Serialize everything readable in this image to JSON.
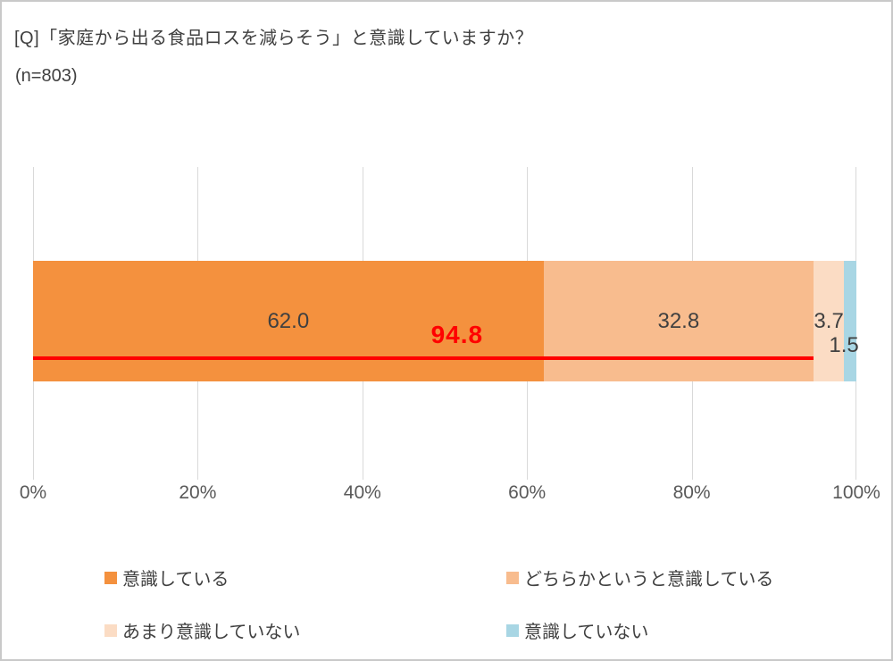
{
  "title": "[Q]「家庭から出る食品ロスを減らそう」と意識していますか？",
  "subtitle": "(n=803)",
  "chart_data": {
    "type": "bar",
    "stacked": true,
    "orientation": "horizontal",
    "categories": [
      "意識している",
      "どちらかというと意識している",
      "あまり意識していない",
      "意識していない"
    ],
    "values": [
      62.0,
      32.8,
      3.7,
      1.5
    ],
    "labels": [
      "62.0",
      "32.8",
      "3.7",
      "1.5"
    ],
    "colors": [
      "#F4913E",
      "#F8BC8E",
      "#FBDCC4",
      "#A8D6E4"
    ],
    "annotation": {
      "value": 94.8,
      "label": "94.8",
      "color": "#FF0000"
    },
    "x_ticks": [
      "0%",
      "20%",
      "40%",
      "60%",
      "80%",
      "100%"
    ],
    "xlim": [
      0,
      100
    ],
    "grid": true,
    "legend_position": "bottom",
    "text_color": "#404040",
    "axis_text_color": "#595959",
    "gridline_color": "#D9D9D9"
  }
}
